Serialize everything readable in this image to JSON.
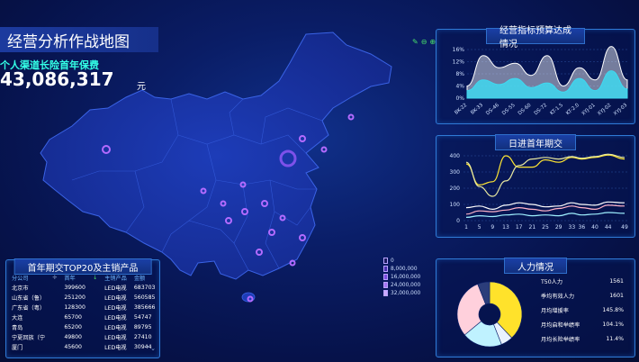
{
  "page": {
    "title": "经营分析作战地图",
    "kpi_label": "个人渠道长险首年保费",
    "kpi_value": "43,086,317",
    "kpi_unit": "元"
  },
  "map_legend": {
    "items": [
      "0",
      "8,000,000",
      "16,000,000",
      "24,000,000",
      "32,000,000"
    ],
    "colors": [
      "#1a1a5e",
      "#4a2fb0",
      "#7d4be0",
      "#a575f2",
      "#c9a8ff"
    ]
  },
  "map_tools": [
    "edit-icon",
    "zoom-out-icon",
    "zoom-in-icon"
  ],
  "budget_panel": {
    "title": "经营指标预算达成情况",
    "chart_data": {
      "type": "area",
      "categories": [
        "BK-22",
        "BK-33",
        "DS-46",
        "DS-55",
        "DS-60",
        "DS-72",
        "KT-1.5",
        "KT-2.0",
        "XYJ-01",
        "XYJ-02",
        "XYJ-03"
      ],
      "ylim": [
        0,
        16
      ],
      "yticks": [
        "0%",
        "4%",
        "8%",
        "12%",
        "16%"
      ],
      "series": [
        {
          "values": [
            4,
            14,
            10,
            11.5,
            7.5,
            14,
            4,
            10,
            6,
            17,
            6
          ],
          "color": "#ffffff"
        },
        {
          "values": [
            2.5,
            6,
            4.5,
            6.5,
            3.5,
            5,
            2,
            6.5,
            2.5,
            9,
            3
          ],
          "color": "#3fd8f0"
        }
      ]
    }
  },
  "daily_panel": {
    "title": "日进首年期交",
    "chart_data": {
      "type": "line",
      "x": [
        1,
        5,
        9,
        13,
        17,
        21,
        25,
        29,
        33,
        36,
        40,
        44,
        49
      ],
      "ylim": [
        0,
        400
      ],
      "yticks": [
        "0",
        "100",
        "200",
        "300",
        "400"
      ],
      "xticks": [
        "1",
        "5",
        "9",
        "13",
        "17",
        "21",
        "25",
        "29",
        "33",
        "36",
        "40",
        "44",
        "49"
      ],
      "series": [
        {
          "values": [
            350,
            220,
            240,
            400,
            330,
            330,
            375,
            360,
            390,
            380,
            390,
            405,
            380
          ],
          "color": "#ffe633"
        },
        {
          "values": [
            360,
            210,
            150,
            245,
            340,
            380,
            390,
            380,
            395,
            385,
            395,
            410,
            390
          ],
          "color": "#e8e8a0"
        },
        {
          "values": [
            80,
            90,
            70,
            95,
            110,
            100,
            85,
            90,
            110,
            100,
            95,
            115,
            110
          ],
          "color": "#ffffff"
        },
        {
          "values": [
            40,
            60,
            55,
            65,
            80,
            70,
            60,
            75,
            90,
            80,
            70,
            95,
            90
          ],
          "color": "#ffb3c8"
        },
        {
          "values": [
            20,
            30,
            25,
            35,
            40,
            30,
            35,
            30,
            45,
            35,
            40,
            50,
            45
          ],
          "color": "#9ff0ff"
        }
      ]
    }
  },
  "hr_panel": {
    "title": "人力情况",
    "rows": [
      {
        "label": "T50人力",
        "value": "1561"
      },
      {
        "label": "季均有效人力",
        "value": "1601"
      },
      {
        "label": "月均增援率",
        "value": "145.8%"
      },
      {
        "label": "月均启和举绩率",
        "value": "104.1%"
      },
      {
        "label": "月均长险举绩率",
        "value": "11.4%"
      }
    ],
    "chart_data": {
      "type": "pie",
      "values": [
        38,
        6,
        20,
        30,
        6
      ],
      "colors": [
        "#ffe22b",
        "#e9f2ff",
        "#bff2ff",
        "#ffd0dc",
        "#2b3d7a"
      ]
    }
  },
  "top20_panel": {
    "title": "首年期交TOP20及主销产品",
    "columns": [
      "分公司",
      "",
      "首年",
      "",
      "主销产品",
      "金额"
    ],
    "rows": [
      [
        "北京市",
        "399600",
        "LED电视",
        "683703"
      ],
      [
        "山东省（鲁）",
        "251200",
        "LED电视",
        "560585"
      ],
      [
        "广东省（粤）",
        "128300",
        "LED电视",
        "385666"
      ],
      [
        "大连",
        "65700",
        "LED电视",
        "54747"
      ],
      [
        "青岛",
        "65200",
        "LED电视",
        "89795"
      ],
      [
        "宁夏回族（宁",
        "49800",
        "LED电视",
        "27410"
      ],
      [
        "厦门",
        "45600",
        "LED电视",
        "30944"
      ]
    ]
  }
}
